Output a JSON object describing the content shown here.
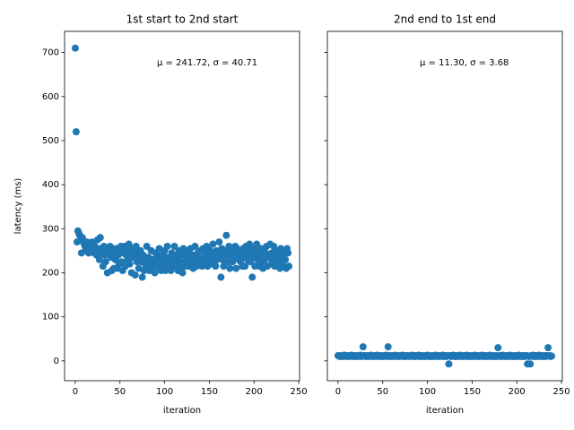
{
  "chart_data": [
    {
      "type": "scatter",
      "title": "1st start to 2nd start",
      "xlabel": "iteration",
      "ylabel": "latency (ms)",
      "annotation": "μ = 241.72, σ = 40.71",
      "color": "#1f77b4",
      "xlim": [
        -11.95,
        250.95
      ],
      "xticks": [
        0,
        50,
        100,
        150,
        200,
        250
      ],
      "ylim": [
        -45,
        748
      ],
      "yticks": [
        0,
        100,
        200,
        300,
        400,
        500,
        600,
        700
      ],
      "x": [
        0,
        1,
        2,
        3,
        4,
        5,
        6,
        7,
        8,
        9,
        10,
        11,
        12,
        13,
        14,
        15,
        16,
        17,
        18,
        19,
        20,
        21,
        22,
        23,
        24,
        25,
        26,
        27,
        28,
        29,
        30,
        31,
        32,
        33,
        34,
        35,
        36,
        37,
        38,
        39,
        40,
        41,
        42,
        43,
        44,
        45,
        46,
        47,
        48,
        49,
        50,
        51,
        52,
        53,
        54,
        55,
        56,
        57,
        58,
        59,
        60,
        61,
        62,
        63,
        64,
        65,
        66,
        67,
        68,
        69,
        70,
        71,
        72,
        73,
        74,
        75,
        76,
        77,
        78,
        79,
        80,
        81,
        82,
        83,
        84,
        85,
        86,
        87,
        88,
        89,
        90,
        91,
        92,
        93,
        94,
        95,
        96,
        97,
        98,
        99,
        100,
        101,
        102,
        103,
        104,
        105,
        106,
        107,
        108,
        109,
        110,
        111,
        112,
        113,
        114,
        115,
        116,
        117,
        118,
        119,
        120,
        121,
        122,
        123,
        124,
        125,
        126,
        127,
        128,
        129,
        130,
        131,
        132,
        133,
        134,
        135,
        136,
        137,
        138,
        139,
        140,
        141,
        142,
        143,
        144,
        145,
        146,
        147,
        148,
        149,
        150,
        151,
        152,
        153,
        154,
        155,
        156,
        157,
        158,
        159,
        160,
        161,
        162,
        163,
        164,
        165,
        166,
        167,
        168,
        169,
        170,
        171,
        172,
        173,
        174,
        175,
        176,
        177,
        178,
        179,
        180,
        181,
        182,
        183,
        184,
        185,
        186,
        187,
        188,
        189,
        190,
        191,
        192,
        193,
        194,
        195,
        196,
        197,
        198,
        199,
        200,
        201,
        202,
        203,
        204,
        205,
        206,
        207,
        208,
        209,
        210,
        211,
        212,
        213,
        214,
        215,
        216,
        217,
        218,
        219,
        220,
        221,
        222,
        223,
        224,
        225,
        226,
        227,
        228,
        229,
        230,
        231,
        232,
        233,
        234,
        235,
        236,
        237,
        238,
        239
      ],
      "values": [
        710,
        520,
        270,
        295,
        290,
        285,
        275,
        245,
        280,
        270,
        265,
        260,
        255,
        270,
        250,
        245,
        260,
        265,
        250,
        270,
        255,
        245,
        260,
        250,
        240,
        275,
        255,
        230,
        280,
        245,
        250,
        215,
        260,
        240,
        225,
        255,
        200,
        250,
        245,
        260,
        235,
        205,
        255,
        210,
        245,
        230,
        255,
        210,
        240,
        220,
        250,
        260,
        225,
        205,
        245,
        260,
        215,
        240,
        255,
        230,
        265,
        220,
        245,
        200,
        235,
        255,
        240,
        195,
        260,
        225,
        245,
        210,
        235,
        250,
        225,
        190,
        240,
        205,
        230,
        215,
        260,
        215,
        235,
        205,
        225,
        250,
        210,
        230,
        220,
        200,
        245,
        225,
        215,
        235,
        255,
        220,
        205,
        240,
        225,
        215,
        250,
        205,
        235,
        260,
        215,
        230,
        225,
        205,
        245,
        235,
        220,
        260,
        215,
        240,
        230,
        205,
        250,
        225,
        215,
        240,
        200,
        255,
        225,
        215,
        245,
        235,
        250,
        215,
        225,
        255,
        220,
        240,
        210,
        230,
        260,
        225,
        215,
        245,
        235,
        220,
        250,
        225,
        215,
        255,
        235,
        220,
        245,
        260,
        215,
        240,
        230,
        250,
        220,
        245,
        265,
        225,
        235,
        215,
        250,
        230,
        245,
        270,
        240,
        190,
        255,
        230,
        215,
        250,
        235,
        285,
        245,
        225,
        260,
        210,
        240,
        255,
        225,
        245,
        235,
        260,
        210,
        255,
        240,
        230,
        250,
        225,
        245,
        215,
        255,
        235,
        215,
        260,
        240,
        230,
        250,
        265,
        225,
        245,
        190,
        255,
        235,
        215,
        250,
        265,
        230,
        245,
        215,
        240,
        255,
        225,
        210,
        250,
        230,
        245,
        260,
        215,
        240,
        235,
        265,
        220,
        245,
        225,
        260,
        215,
        235,
        250,
        220,
        245,
        230,
        210,
        255,
        225,
        240,
        215,
        250,
        230,
        210,
        255,
        245,
        215
      ]
    },
    {
      "type": "scatter",
      "title": "2nd end to 1st end",
      "xlabel": "iteration",
      "annotation": "μ = 11.30, σ = 3.68",
      "color": "#1f77b4",
      "xlim": [
        -11.95,
        250.95
      ],
      "xticks": [
        0,
        50,
        100,
        150,
        200,
        250
      ],
      "ylim": [
        -45,
        748
      ],
      "yticks": [
        0,
        100,
        200,
        300,
        400,
        500,
        600,
        700
      ],
      "x": [
        0,
        1,
        2,
        3,
        4,
        5,
        6,
        7,
        8,
        9,
        10,
        11,
        12,
        13,
        14,
        15,
        16,
        17,
        18,
        19,
        20,
        21,
        22,
        23,
        24,
        25,
        26,
        27,
        28,
        29,
        30,
        31,
        32,
        33,
        34,
        35,
        36,
        37,
        38,
        39,
        40,
        41,
        42,
        43,
        44,
        45,
        46,
        47,
        48,
        49,
        50,
        51,
        52,
        53,
        54,
        55,
        56,
        57,
        58,
        59,
        60,
        61,
        62,
        63,
        64,
        65,
        66,
        67,
        68,
        69,
        70,
        71,
        72,
        73,
        74,
        75,
        76,
        77,
        78,
        79,
        80,
        81,
        82,
        83,
        84,
        85,
        86,
        87,
        88,
        89,
        90,
        91,
        92,
        93,
        94,
        95,
        96,
        97,
        98,
        99,
        100,
        101,
        102,
        103,
        104,
        105,
        106,
        107,
        108,
        109,
        110,
        111,
        112,
        113,
        114,
        115,
        116,
        117,
        118,
        119,
        120,
        121,
        122,
        123,
        124,
        125,
        126,
        127,
        128,
        129,
        130,
        131,
        132,
        133,
        134,
        135,
        136,
        137,
        138,
        139,
        140,
        141,
        142,
        143,
        144,
        145,
        146,
        147,
        148,
        149,
        150,
        151,
        152,
        153,
        154,
        155,
        156,
        157,
        158,
        159,
        160,
        161,
        162,
        163,
        164,
        165,
        166,
        167,
        168,
        169,
        170,
        171,
        172,
        173,
        174,
        175,
        176,
        177,
        178,
        179,
        180,
        181,
        182,
        183,
        184,
        185,
        186,
        187,
        188,
        189,
        190,
        191,
        192,
        193,
        194,
        195,
        196,
        197,
        198,
        199,
        200,
        201,
        202,
        203,
        204,
        205,
        206,
        207,
        208,
        209,
        210,
        211,
        212,
        213,
        214,
        215,
        216,
        217,
        218,
        219,
        220,
        221,
        222,
        223,
        224,
        225,
        226,
        227,
        228,
        229,
        230,
        231,
        232,
        233,
        234,
        235,
        236,
        237,
        238,
        239
      ],
      "values": [
        12,
        11,
        10,
        12,
        11,
        10,
        12,
        13,
        11,
        10,
        12,
        11,
        10,
        12,
        11,
        13,
        10,
        11,
        12,
        10,
        11,
        12,
        10,
        11,
        12,
        13,
        10,
        11,
        32,
        12,
        11,
        10,
        12,
        11,
        10,
        12,
        11,
        13,
        10,
        12,
        11,
        10,
        12,
        11,
        13,
        10,
        11,
        12,
        10,
        11,
        12,
        10,
        11,
        12,
        13,
        10,
        32,
        11,
        12,
        10,
        11,
        12,
        10,
        11,
        13,
        12,
        10,
        11,
        12,
        10,
        11,
        12,
        13,
        10,
        11,
        12,
        10,
        11,
        12,
        11,
        10,
        12,
        11,
        13,
        10,
        11,
        12,
        10,
        11,
        12,
        13,
        10,
        11,
        12,
        10,
        11,
        12,
        10,
        11,
        12,
        13,
        10,
        11,
        12,
        10,
        11,
        12,
        10,
        11,
        13,
        12,
        10,
        11,
        12,
        10,
        11,
        12,
        13,
        10,
        11,
        12,
        10,
        11,
        12,
        -7,
        11,
        12,
        10,
        11,
        13,
        12,
        10,
        11,
        12,
        10,
        11,
        12,
        13,
        10,
        11,
        12,
        10,
        11,
        12,
        13,
        10,
        11,
        12,
        10,
        11,
        12,
        10,
        11,
        13,
        12,
        10,
        11,
        12,
        10,
        11,
        12,
        13,
        10,
        11,
        12,
        10,
        11,
        12,
        10,
        11,
        13,
        12,
        10,
        11,
        12,
        10,
        11,
        12,
        10,
        30,
        11,
        12,
        10,
        11,
        13,
        12,
        10,
        11,
        12,
        10,
        11,
        12,
        13,
        10,
        11,
        12,
        10,
        11,
        12,
        10,
        11,
        12,
        13,
        10,
        11,
        12,
        10,
        11,
        12,
        10,
        11,
        12,
        -7,
        11,
        10,
        -7,
        12,
        11,
        13,
        10,
        11,
        12,
        10,
        11,
        12,
        13,
        10,
        11,
        12,
        10,
        11,
        12,
        10,
        11,
        12,
        30,
        11,
        12,
        10,
        11
      ]
    }
  ]
}
